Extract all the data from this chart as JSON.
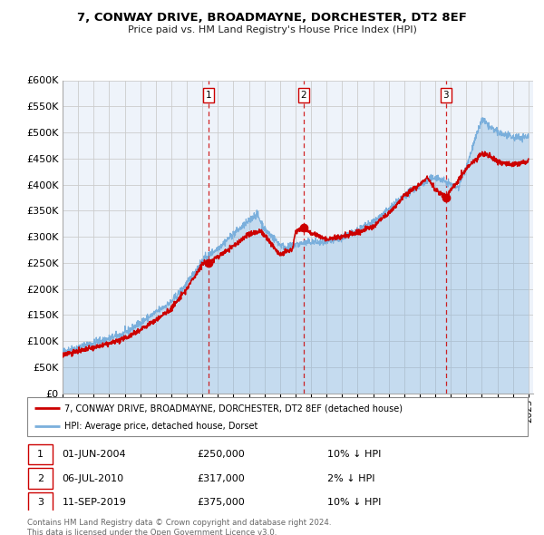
{
  "title": "7, CONWAY DRIVE, BROADMAYNE, DORCHESTER, DT2 8EF",
  "subtitle": "Price paid vs. HM Land Registry's House Price Index (HPI)",
  "red_label": "7, CONWAY DRIVE, BROADMAYNE, DORCHESTER, DT2 8EF (detached house)",
  "blue_label": "HPI: Average price, detached house, Dorset",
  "transactions": [
    {
      "num": 1,
      "date": "01-JUN-2004",
      "date_x": 2004.42,
      "price": 250000,
      "pct": "10%",
      "dir": "↓"
    },
    {
      "num": 2,
      "date": "06-JUL-2010",
      "date_x": 2010.51,
      "price": 317000,
      "pct": "2%",
      "dir": "↓"
    },
    {
      "num": 3,
      "date": "11-SEP-2019",
      "date_x": 2019.69,
      "price": 375000,
      "pct": "10%",
      "dir": "↓"
    }
  ],
  "footer1": "Contains HM Land Registry data © Crown copyright and database right 2024.",
  "footer2": "This data is licensed under the Open Government Licence v3.0.",
  "ylim": [
    0,
    600000
  ],
  "yticks": [
    0,
    50000,
    100000,
    150000,
    200000,
    250000,
    300000,
    350000,
    400000,
    450000,
    500000,
    550000,
    600000
  ],
  "xlim_start": 1995.0,
  "xlim_end": 2025.3,
  "red_color": "#cc0000",
  "blue_color": "#7aafdc",
  "blue_fill": "#ddeeff",
  "grid_color": "#cccccc",
  "bg_color": "#eef3fa"
}
